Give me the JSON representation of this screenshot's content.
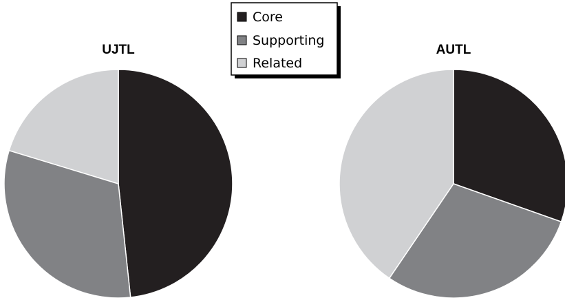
{
  "colors": {
    "Core": "#231f20",
    "Supporting": "#818285",
    "Related": "#d0d1d3",
    "outline": "#ffffff",
    "legend_border": "#000000"
  },
  "legend": {
    "items": [
      {
        "label": "Core",
        "color": "#231f20"
      },
      {
        "label": "Supporting",
        "color": "#818285"
      },
      {
        "label": "Related",
        "color": "#d0d1d3"
      }
    ]
  },
  "chart_data": [
    {
      "type": "pie",
      "title": "UJTL",
      "categories": [
        "Core",
        "Supporting",
        "Related"
      ],
      "values": [
        48.3,
        31.4,
        20.3
      ],
      "start": "12 o'clock",
      "direction": "clockwise"
    },
    {
      "type": "pie",
      "title": "AUTL",
      "categories": [
        "Core",
        "Supporting",
        "Related"
      ],
      "values": [
        30.4,
        29.1,
        40.5
      ],
      "start": "12 o'clock",
      "direction": "clockwise"
    }
  ]
}
